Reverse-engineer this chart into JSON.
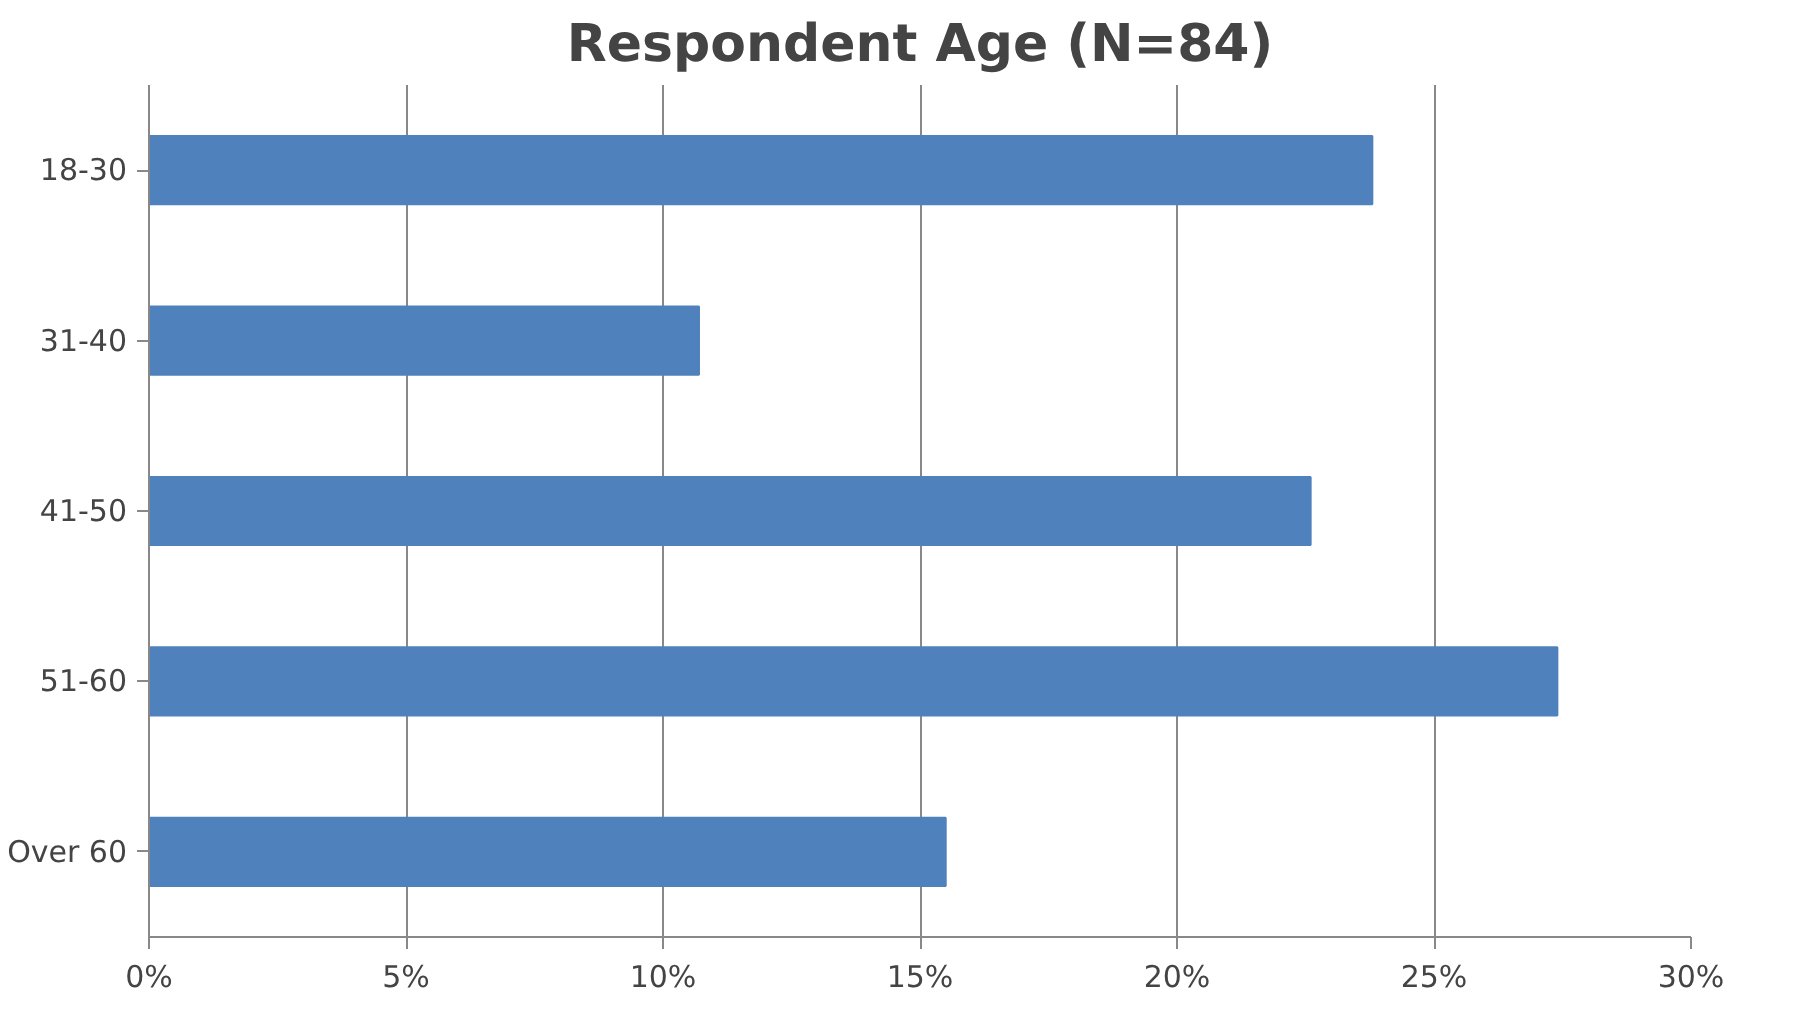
{
  "chart_data": {
    "type": "bar",
    "orientation": "horizontal",
    "title": "Respondent Age (N=84)",
    "categories": [
      "18-30",
      "31-40",
      "41-50",
      "51-60",
      "Over 60"
    ],
    "values": [
      23.8,
      10.7,
      22.6,
      27.4,
      15.5
    ],
    "color": "#4f81bd",
    "xlim": [
      0,
      30
    ],
    "xticks": [
      {
        "value": 0,
        "label": "0%"
      },
      {
        "value": 5,
        "label": "5%"
      },
      {
        "value": 10,
        "label": "10%"
      },
      {
        "value": 15,
        "label": "15%"
      },
      {
        "value": 20,
        "label": "20%"
      },
      {
        "value": 25,
        "label": "25%"
      },
      {
        "value": 30,
        "label": "30%"
      }
    ],
    "grid": "x"
  }
}
